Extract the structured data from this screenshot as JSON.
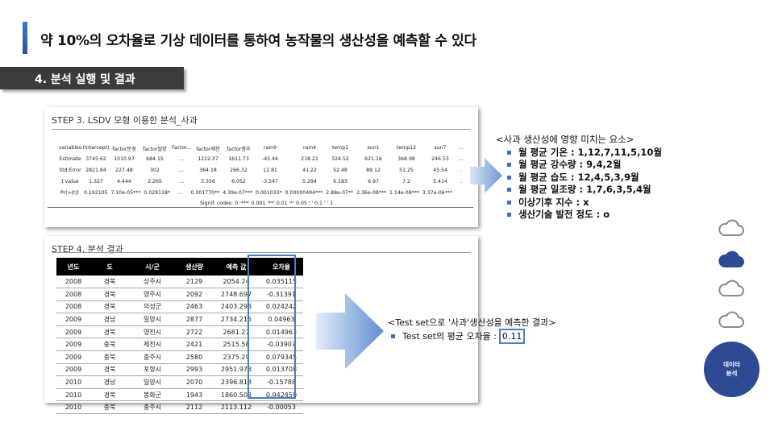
{
  "header": {
    "title": "약 10%의 오차율로 기상 데이터를 통하여 농작물의 생산성을 예측할 수 있다"
  },
  "section": {
    "label": "4. 분석 실행 및 결과"
  },
  "step3": {
    "title": "STEP 3. LSDV 모형 이용한 분석_사과",
    "columns": [
      "variables",
      "(Intercept)",
      "factor문경",
      "factor밀양",
      "Factor...",
      "factor제천",
      "factor충주",
      "rain9",
      "rain4",
      "temp1",
      "sun1",
      "temp12",
      "sun7",
      "..."
    ],
    "rows": [
      [
        "Estimate",
        "3745.62",
        "1010.97",
        "684.15",
        "...",
        "1222.37",
        "1611.73",
        "-45.44",
        "218.21",
        "324.52",
        "621.16",
        "368.98",
        "246.53",
        "..."
      ],
      [
        "Std.Error",
        "2821.84",
        "227.48",
        "302",
        "...",
        "364.18",
        "266.32",
        "12.81",
        "41.22",
        "52.48",
        "89.12",
        "51.25",
        "45.54",
        "."
      ],
      [
        "t value",
        "1.327",
        "4.444",
        "2.265",
        "...",
        "3.356",
        "6.052",
        "-3.547",
        "5.294",
        "6.183",
        "6.97",
        "7.2",
        "5.414",
        "."
      ]
    ],
    "pr_label": "Pr(>|t|)",
    "pr_values": "0.192105  7.10e-05***  0.029118*     ...     0.001770**  4.39e-07***  0.001033*  0.00000494***  2.88e-07**  2.36e-08***  1.14e-08***  3.37e-06***",
    "signif": "Signif. codes:  0 '***' 0.001 '**' 0.01 '*' 0.05 '.' 0.1 ' ' 1"
  },
  "factors": {
    "head": "<사과 생산성에 영향 미치는 요소>",
    "items": [
      "월 평균 기온 : 1,12,7,11,5,10월",
      "월 평균 강수량 : 9,4,2월",
      "월 평균 습도 : 12,4,5,3,9월",
      "월 평균 일조량 : 1,7,6,3,5,4월",
      "이상기후 지수 : x",
      "생산기술 발전 정도 : o"
    ]
  },
  "step4": {
    "title": "STEP 4. 분석 결과",
    "headers": [
      "년도",
      "도",
      "시/군",
      "생산량",
      "예측 값",
      "오차율"
    ],
    "rows": [
      [
        "2008",
        "경북",
        "상주시",
        "2129",
        "2054.24",
        "0.035115"
      ],
      [
        "2008",
        "경북",
        "영주시",
        "2092",
        "2748.697",
        "-0.31391"
      ],
      [
        "2008",
        "경북",
        "의성군",
        "2463",
        "2403.293",
        "0.024242"
      ],
      [
        "2009",
        "경남",
        "밀양시",
        "2877",
        "2734.215",
        "0.04963"
      ],
      [
        "2009",
        "경북",
        "영천시",
        "2722",
        "2681.27",
        "0.014963"
      ],
      [
        "2009",
        "충북",
        "제천시",
        "2421",
        "2515.58",
        "-0.03907"
      ],
      [
        "2009",
        "충북",
        "충주시",
        "2580",
        "2375.29",
        "0.079345"
      ],
      [
        "2009",
        "경북",
        "포항시",
        "2993",
        "2951.973",
        "0.013708"
      ],
      [
        "2010",
        "경남",
        "밀양시",
        "2070",
        "2396.813",
        "-0.15788"
      ],
      [
        "2010",
        "경북",
        "봉화군",
        "1943",
        "1860.503",
        "0.042459"
      ],
      [
        "2010",
        "충북",
        "충주시",
        "2112",
        "2113.112",
        "-0.00053"
      ]
    ]
  },
  "result": {
    "head": "<Test set으로 '사과'생산성을 예측한 결과>",
    "item": "Test set의 평균 오차율 :",
    "value": "0.11"
  },
  "nav": {
    "active_button": "데이터\n분석",
    "line1": "데이터",
    "line2": "분석"
  },
  "colors": {
    "accent": "#3e6fc0",
    "nav_button": "#2e4a93",
    "tab_bg": "#3b3b3b"
  }
}
